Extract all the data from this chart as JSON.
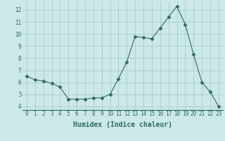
{
  "x": [
    0,
    1,
    2,
    3,
    4,
    5,
    6,
    7,
    8,
    9,
    10,
    11,
    12,
    13,
    14,
    15,
    16,
    17,
    18,
    19,
    20,
    21,
    22,
    23
  ],
  "y": [
    6.5,
    6.2,
    6.1,
    5.9,
    5.6,
    4.6,
    4.6,
    4.6,
    4.7,
    4.7,
    5.0,
    6.3,
    7.7,
    9.8,
    9.7,
    9.6,
    10.5,
    11.4,
    12.3,
    10.8,
    8.3,
    6.0,
    5.2,
    4.0
  ],
  "xlabel": "Humidex (Indice chaleur)",
  "xlim_min": -0.5,
  "xlim_max": 23.5,
  "ylim_min": 3.7,
  "ylim_max": 12.7,
  "yticks": [
    4,
    5,
    6,
    7,
    8,
    9,
    10,
    11,
    12
  ],
  "xticks": [
    0,
    1,
    2,
    3,
    4,
    5,
    6,
    7,
    8,
    9,
    10,
    11,
    12,
    13,
    14,
    15,
    16,
    17,
    18,
    19,
    20,
    21,
    22,
    23
  ],
  "line_color": "#2e6b5e",
  "marker": "D",
  "marker_size": 2.5,
  "bg_color": "#cce8e8",
  "grid_color": "#aacccc",
  "tick_fontsize": 5.5,
  "xlabel_fontsize": 7.0
}
